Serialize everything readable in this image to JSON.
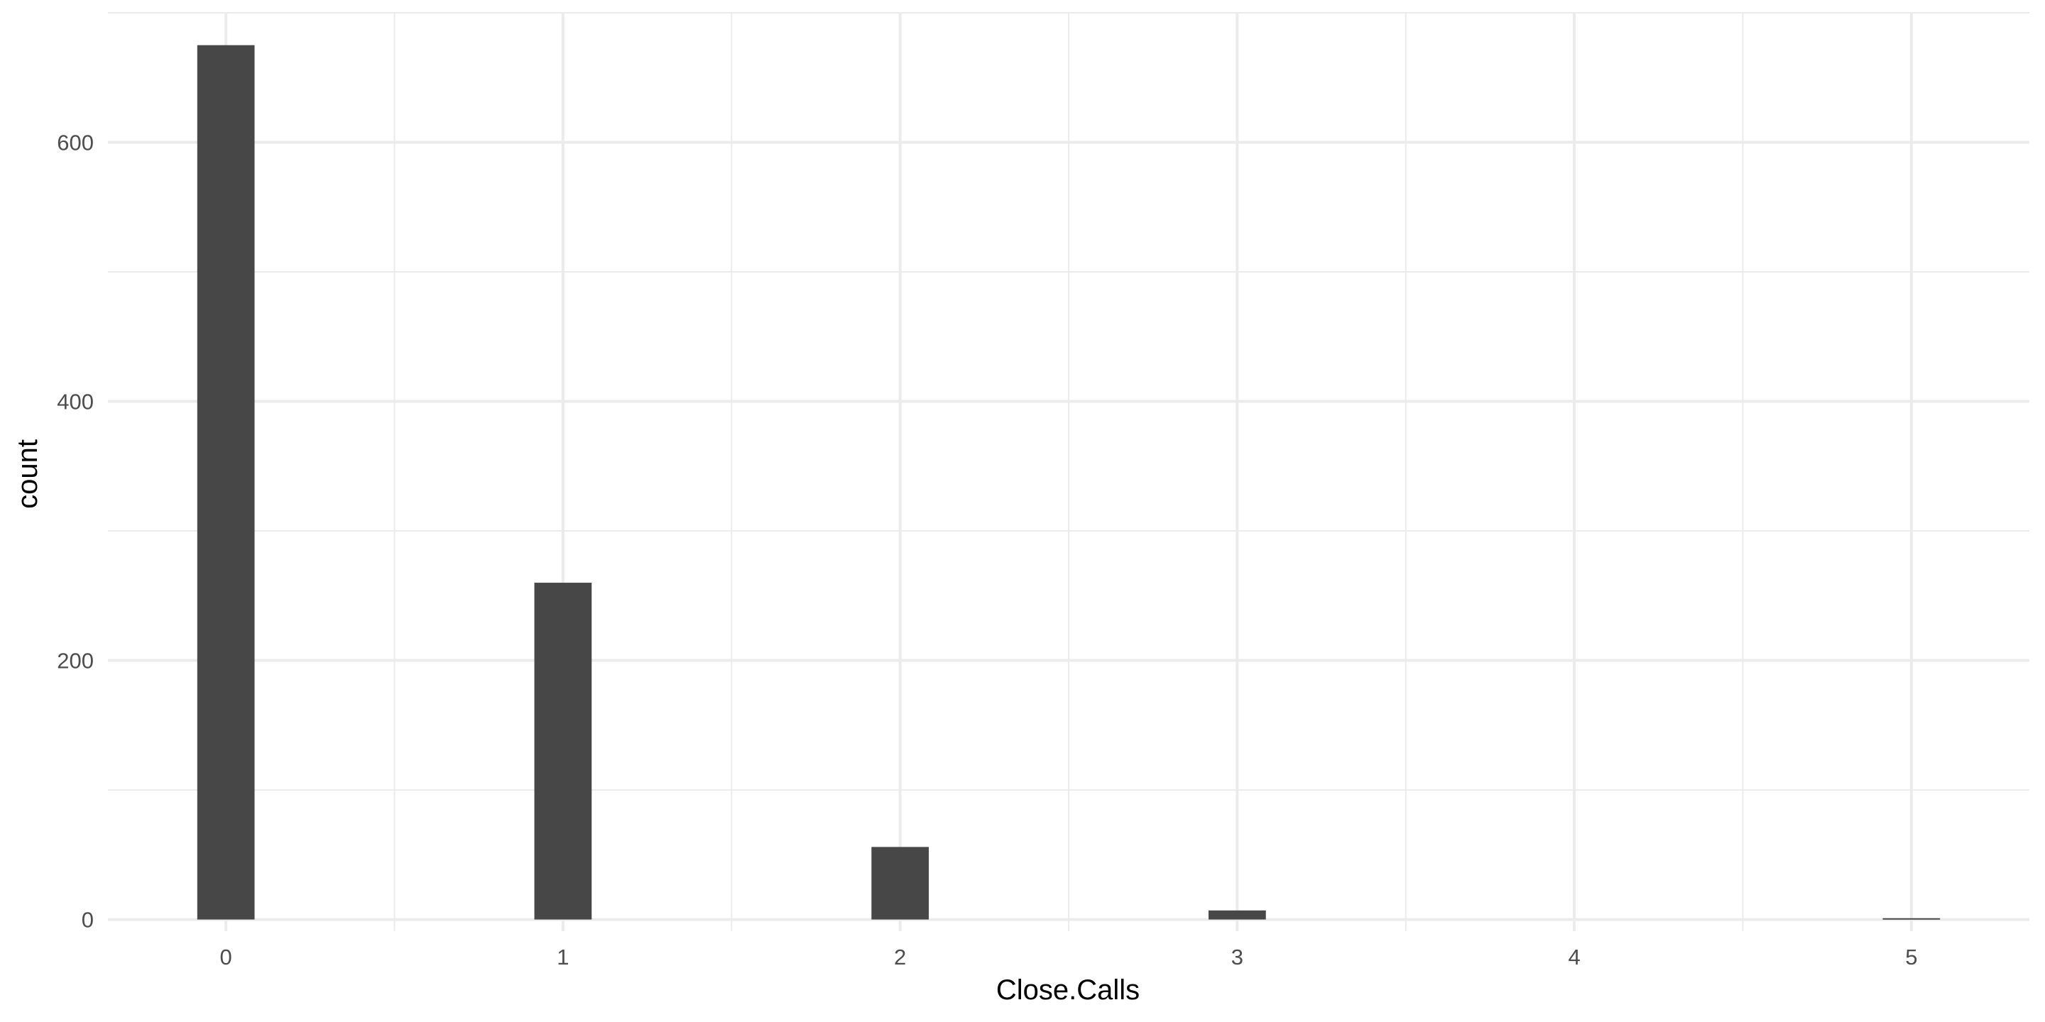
{
  "chart_data": {
    "type": "bar",
    "title": "",
    "xlabel": "Close.Calls",
    "ylabel": "count",
    "x_ticks": [
      "0",
      "1",
      "2",
      "3",
      "4",
      "5"
    ],
    "y_ticks": [
      "0",
      "200",
      "400",
      "600"
    ],
    "xlim": [
      -0.35,
      5.35
    ],
    "ylim": [
      -9,
      700
    ],
    "bars": [
      {
        "x": 0,
        "count": 675
      },
      {
        "x": 1,
        "count": 260
      },
      {
        "x": 2,
        "count": 56
      },
      {
        "x": 3,
        "count": 7
      },
      {
        "x": 4,
        "count": 0
      },
      {
        "x": 5,
        "count": 1
      }
    ],
    "bar_color": "#474747",
    "grid": true,
    "grid_color": "#ebebeb",
    "legend": "none"
  }
}
